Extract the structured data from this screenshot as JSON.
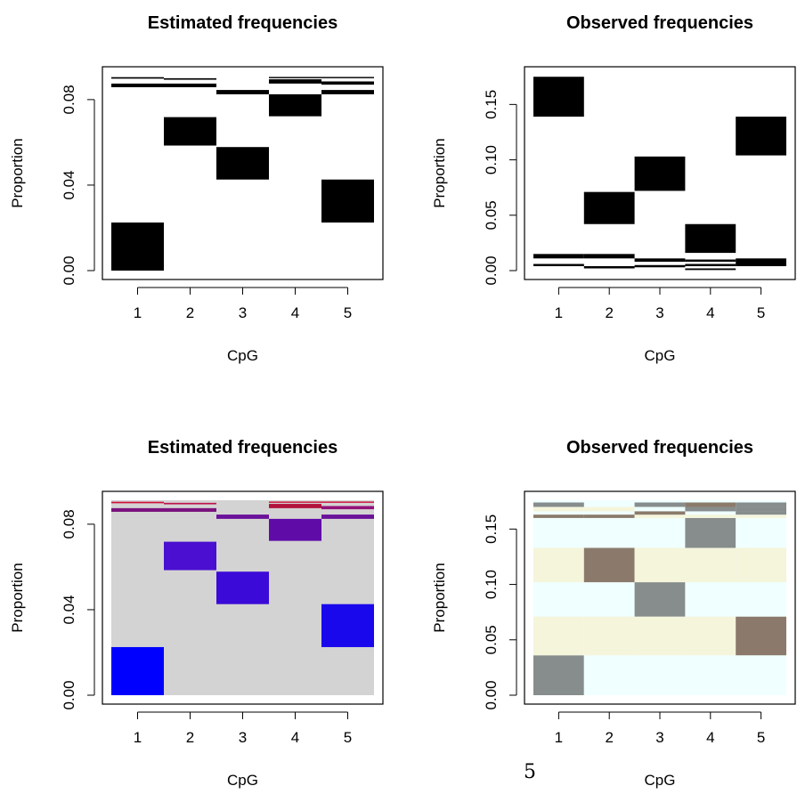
{
  "page": {
    "page_number": "5"
  },
  "colors": {
    "black": "#000000",
    "background_gray": "#d3d3d3",
    "observed_light_cyan": "#f0ffff",
    "observed_beige": "#f5f5dc",
    "observed_gray": "#878c8c",
    "observed_brown": "#8b7a6b"
  },
  "chart_data": [
    {
      "type": "heatmap",
      "title": "Estimated frequencies",
      "xlabel": "CpG",
      "ylabel": "Proportion",
      "x_ticks": [
        "1",
        "2",
        "3",
        "4",
        "5"
      ],
      "y_ticks": [
        "0.00",
        "0.04",
        "0.08"
      ],
      "y_tick_values": [
        0,
        0.04,
        0.08
      ],
      "xlim": [
        0.5,
        5.5
      ],
      "ylim": [
        0,
        0.0912
      ],
      "background": "#ffffff",
      "cells": [
        {
          "x": 1,
          "y0": 0.0,
          "y1": 0.0225,
          "color": "#000000"
        },
        {
          "x": 2,
          "y0": 0.0585,
          "y1": 0.0718,
          "color": "#000000"
        },
        {
          "x": 3,
          "y0": 0.0426,
          "y1": 0.0578,
          "color": "#000000"
        },
        {
          "x": 4,
          "y0": 0.0722,
          "y1": 0.0825,
          "color": "#000000"
        },
        {
          "x": 5,
          "y0": 0.0225,
          "y1": 0.0426,
          "color": "#000000"
        },
        {
          "x": 1,
          "y0": 0.0858,
          "y1": 0.0875,
          "color": "#000000"
        },
        {
          "x": 2,
          "y0": 0.0858,
          "y1": 0.0875,
          "color": "#000000"
        },
        {
          "x": 3,
          "y0": 0.0825,
          "y1": 0.0845,
          "color": "#000000"
        },
        {
          "x": 4,
          "y0": 0.0875,
          "y1": 0.0895,
          "color": "#000000"
        },
        {
          "x": 5,
          "y0": 0.0825,
          "y1": 0.0845,
          "color": "#000000"
        },
        {
          "x": 5,
          "y0": 0.087,
          "y1": 0.0885,
          "color": "#000000"
        },
        {
          "x": 1,
          "y0": 0.0898,
          "y1": 0.0905,
          "color": "#000000"
        },
        {
          "x": 2,
          "y0": 0.0893,
          "y1": 0.09,
          "color": "#000000"
        },
        {
          "x": 4,
          "y0": 0.09,
          "y1": 0.0906,
          "color": "#000000"
        },
        {
          "x": 5,
          "y0": 0.09,
          "y1": 0.0906,
          "color": "#000000"
        }
      ]
    },
    {
      "type": "heatmap",
      "title": "Observed frequencies",
      "xlabel": "CpG",
      "ylabel": "Proportion",
      "x_ticks": [
        "1",
        "2",
        "3",
        "4",
        "5"
      ],
      "y_ticks": [
        "0.00",
        "0.05",
        "0.10",
        "0.15"
      ],
      "y_tick_values": [
        0,
        0.05,
        0.1,
        0.15
      ],
      "xlim": [
        0.5,
        5.5
      ],
      "ylim": [
        0,
        0.176
      ],
      "background": "#ffffff",
      "cells": [
        {
          "x": 1,
          "y0": 0.139,
          "y1": 0.175,
          "color": "#000000"
        },
        {
          "x": 2,
          "y0": 0.042,
          "y1": 0.071,
          "color": "#000000"
        },
        {
          "x": 3,
          "y0": 0.072,
          "y1": 0.103,
          "color": "#000000"
        },
        {
          "x": 4,
          "y0": 0.016,
          "y1": 0.042,
          "color": "#000000"
        },
        {
          "x": 5,
          "y0": 0.104,
          "y1": 0.139,
          "color": "#000000"
        },
        {
          "x": 1,
          "y0": 0.011,
          "y1": 0.015,
          "color": "#000000"
        },
        {
          "x": 1,
          "y0": 0.004,
          "y1": 0.006,
          "color": "#000000"
        },
        {
          "x": 2,
          "y0": 0.011,
          "y1": 0.015,
          "color": "#000000"
        },
        {
          "x": 2,
          "y0": 0.002,
          "y1": 0.004,
          "color": "#000000"
        },
        {
          "x": 3,
          "y0": 0.008,
          "y1": 0.011,
          "color": "#000000"
        },
        {
          "x": 3,
          "y0": 0.003,
          "y1": 0.005,
          "color": "#000000"
        },
        {
          "x": 4,
          "y0": 0.008,
          "y1": 0.01,
          "color": "#000000"
        },
        {
          "x": 4,
          "y0": 0.004,
          "y1": 0.006,
          "color": "#000000"
        },
        {
          "x": 4,
          "y0": 0.0005,
          "y1": 0.002,
          "color": "#000000"
        },
        {
          "x": 5,
          "y0": 0.004,
          "y1": 0.011,
          "color": "#000000"
        }
      ]
    },
    {
      "type": "heatmap",
      "title": "Estimated frequencies",
      "xlabel": "CpG",
      "ylabel": "Proportion",
      "x_ticks": [
        "1",
        "2",
        "3",
        "4",
        "5"
      ],
      "y_ticks": [
        "0.00",
        "0.04",
        "0.08"
      ],
      "y_tick_values": [
        0,
        0.04,
        0.08
      ],
      "xlim": [
        0.5,
        5.5
      ],
      "ylim": [
        0,
        0.0912
      ],
      "background": "#d3d3d3",
      "cells": [
        {
          "x": 1,
          "y0": 0.0,
          "y1": 0.0225,
          "color": "#0000ff"
        },
        {
          "x": 2,
          "y0": 0.0585,
          "y1": 0.0718,
          "color": "#4a0fd0"
        },
        {
          "x": 3,
          "y0": 0.0426,
          "y1": 0.0578,
          "color": "#3c0ad8"
        },
        {
          "x": 4,
          "y0": 0.0722,
          "y1": 0.0825,
          "color": "#5f0ba8"
        },
        {
          "x": 5,
          "y0": 0.0225,
          "y1": 0.0426,
          "color": "#1a08ec"
        },
        {
          "x": 1,
          "y0": 0.0858,
          "y1": 0.0875,
          "color": "#7a127c"
        },
        {
          "x": 2,
          "y0": 0.0858,
          "y1": 0.0875,
          "color": "#7a127c"
        },
        {
          "x": 3,
          "y0": 0.0825,
          "y1": 0.0845,
          "color": "#6a129a"
        },
        {
          "x": 4,
          "y0": 0.0875,
          "y1": 0.0895,
          "color": "#b2123c"
        },
        {
          "x": 5,
          "y0": 0.0825,
          "y1": 0.0845,
          "color": "#6a129a"
        },
        {
          "x": 5,
          "y0": 0.087,
          "y1": 0.0885,
          "color": "#94127a"
        },
        {
          "x": 1,
          "y0": 0.0898,
          "y1": 0.0905,
          "color": "#d0103a"
        },
        {
          "x": 2,
          "y0": 0.0893,
          "y1": 0.09,
          "color": "#c0134c"
        },
        {
          "x": 4,
          "y0": 0.09,
          "y1": 0.0906,
          "color": "#d0103a"
        },
        {
          "x": 5,
          "y0": 0.09,
          "y1": 0.0906,
          "color": "#d0103a"
        }
      ]
    },
    {
      "type": "heatmap",
      "title": "Observed frequencies",
      "xlabel": "CpG",
      "ylabel": "Proportion",
      "x_ticks": [
        "1",
        "2",
        "3",
        "4",
        "5"
      ],
      "y_ticks": [
        "0.00",
        "0.05",
        "0.10",
        "0.15"
      ],
      "y_tick_values": [
        0,
        0.05,
        0.1,
        0.15
      ],
      "xlim": [
        0.5,
        5.5
      ],
      "ylim": [
        0,
        0.176
      ],
      "background": "#f0ffff",
      "cells": [
        {
          "x": 1,
          "y0": 0.0,
          "y1": 0.036,
          "color": "#878c8c"
        },
        {
          "x": 2,
          "y0": 0.0,
          "y1": 0.036,
          "color": "#f0ffff"
        },
        {
          "x": 3,
          "y0": 0.0,
          "y1": 0.036,
          "color": "#f0ffff"
        },
        {
          "x": 4,
          "y0": 0.0,
          "y1": 0.036,
          "color": "#f0ffff"
        },
        {
          "x": 5,
          "y0": 0.0,
          "y1": 0.036,
          "color": "#f0ffff"
        },
        {
          "x": 1,
          "y0": 0.036,
          "y1": 0.071,
          "color": "#f5f5dc"
        },
        {
          "x": 2,
          "y0": 0.036,
          "y1": 0.071,
          "color": "#f5f5dc"
        },
        {
          "x": 3,
          "y0": 0.036,
          "y1": 0.071,
          "color": "#f5f5dc"
        },
        {
          "x": 4,
          "y0": 0.036,
          "y1": 0.071,
          "color": "#f5f5dc"
        },
        {
          "x": 5,
          "y0": 0.036,
          "y1": 0.071,
          "color": "#8b7a6b"
        },
        {
          "x": 1,
          "y0": 0.071,
          "y1": 0.102,
          "color": "#f0ffff"
        },
        {
          "x": 2,
          "y0": 0.071,
          "y1": 0.102,
          "color": "#f0ffff"
        },
        {
          "x": 3,
          "y0": 0.071,
          "y1": 0.102,
          "color": "#878c8c"
        },
        {
          "x": 4,
          "y0": 0.071,
          "y1": 0.102,
          "color": "#f0ffff"
        },
        {
          "x": 5,
          "y0": 0.071,
          "y1": 0.102,
          "color": "#f0ffff"
        },
        {
          "x": 1,
          "y0": 0.102,
          "y1": 0.133,
          "color": "#f5f5dc"
        },
        {
          "x": 2,
          "y0": 0.102,
          "y1": 0.133,
          "color": "#8b7a6b"
        },
        {
          "x": 3,
          "y0": 0.102,
          "y1": 0.133,
          "color": "#f5f5dc"
        },
        {
          "x": 4,
          "y0": 0.102,
          "y1": 0.133,
          "color": "#f5f5dc"
        },
        {
          "x": 5,
          "y0": 0.102,
          "y1": 0.133,
          "color": "#f5f5dc"
        },
        {
          "x": 1,
          "y0": 0.133,
          "y1": 0.16,
          "color": "#f0ffff"
        },
        {
          "x": 2,
          "y0": 0.133,
          "y1": 0.16,
          "color": "#f0ffff"
        },
        {
          "x": 3,
          "y0": 0.133,
          "y1": 0.16,
          "color": "#f0ffff"
        },
        {
          "x": 4,
          "y0": 0.133,
          "y1": 0.16,
          "color": "#878c8c"
        },
        {
          "x": 5,
          "y0": 0.133,
          "y1": 0.16,
          "color": "#f0ffff"
        },
        {
          "x": 1,
          "y0": 0.16,
          "y1": 0.163,
          "color": "#8b7a6b"
        },
        {
          "x": 2,
          "y0": 0.16,
          "y1": 0.163,
          "color": "#8b7a6b"
        },
        {
          "x": 3,
          "y0": 0.16,
          "y1": 0.163,
          "color": "#f5f5dc"
        },
        {
          "x": 4,
          "y0": 0.16,
          "y1": 0.163,
          "color": "#f5f5dc"
        },
        {
          "x": 5,
          "y0": 0.16,
          "y1": 0.163,
          "color": "#f5f5dc"
        },
        {
          "x": 3,
          "y0": 0.163,
          "y1": 0.166,
          "color": "#8b7a6b"
        },
        {
          "x": 5,
          "y0": 0.163,
          "y1": 0.166,
          "color": "#878c8c"
        },
        {
          "x": 1,
          "y0": 0.166,
          "y1": 0.17,
          "color": "#f5f5dc"
        },
        {
          "x": 2,
          "y0": 0.166,
          "y1": 0.17,
          "color": "#f5f5dc"
        },
        {
          "x": 4,
          "y0": 0.166,
          "y1": 0.17,
          "color": "#878c8c"
        },
        {
          "x": 5,
          "y0": 0.166,
          "y1": 0.17,
          "color": "#878c8c"
        },
        {
          "x": 1,
          "y0": 0.17,
          "y1": 0.174,
          "color": "#878c8c"
        },
        {
          "x": 3,
          "y0": 0.17,
          "y1": 0.174,
          "color": "#878c8c"
        },
        {
          "x": 4,
          "y0": 0.17,
          "y1": 0.174,
          "color": "#8b7a6b"
        },
        {
          "x": 5,
          "y0": 0.17,
          "y1": 0.174,
          "color": "#878c8c"
        }
      ]
    }
  ]
}
